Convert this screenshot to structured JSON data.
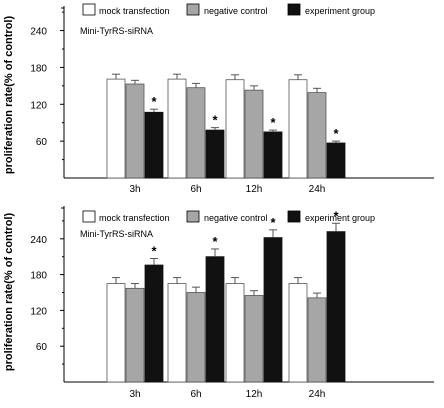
{
  "chart_data": [
    {
      "type": "bar",
      "subtitle": "Mini-TyrRS-siRNA",
      "ylabel": "proliferation rate(% of control)",
      "categories": [
        "3h",
        "6h",
        "12h",
        "24h"
      ],
      "ylim": [
        0,
        280
      ],
      "yticks": [
        "60",
        "120",
        "180",
        "240"
      ],
      "legend_position": "top",
      "series": [
        {
          "name": "mock transfection",
          "color": "#ffffff",
          "values": [
            161,
            161,
            160,
            160
          ],
          "errors": [
            8,
            8,
            8,
            8
          ]
        },
        {
          "name": "negative control",
          "color": "#a6a6a6",
          "values": [
            153,
            147,
            143,
            139
          ],
          "errors": [
            6,
            7,
            7,
            7
          ]
        },
        {
          "name": "experiment group",
          "color": "#111111",
          "values": [
            107,
            78,
            75,
            57
          ],
          "errors": [
            5,
            4,
            3,
            3
          ]
        }
      ],
      "significance_marker": "*",
      "marked_series": "experiment group"
    },
    {
      "type": "bar",
      "subtitle": "Mini-TyrRS-siRNA",
      "ylabel": "proliferation rate(% of control)",
      "categories": [
        "3h",
        "6h",
        "12h",
        "24h"
      ],
      "ylim": [
        0,
        295
      ],
      "yticks": [
        "60",
        "120",
        "180",
        "240"
      ],
      "legend_position": "top",
      "series": [
        {
          "name": "mock transfection",
          "color": "#ffffff",
          "values": [
            165,
            165,
            165,
            165
          ],
          "errors": [
            10,
            10,
            10,
            10
          ]
        },
        {
          "name": "negative control",
          "color": "#a6a6a6",
          "values": [
            157,
            150,
            145,
            141
          ],
          "errors": [
            8,
            9,
            8,
            8
          ]
        },
        {
          "name": "experiment group",
          "color": "#111111",
          "values": [
            196,
            210,
            242,
            252
          ],
          "errors": [
            11,
            13,
            13,
            14
          ]
        }
      ],
      "significance_marker": "*",
      "marked_series": "experiment group"
    }
  ]
}
